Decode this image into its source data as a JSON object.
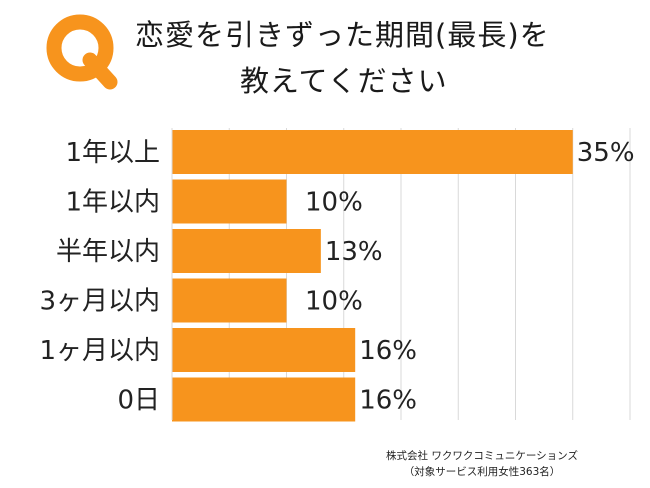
{
  "title": {
    "badge_letter": "Q",
    "line1": "恋愛を引きずった期間(最長)を",
    "line2": "教えてください"
  },
  "colors": {
    "accent": "#F7941D",
    "bar": "#F7941D",
    "grid": "#d9d9d9"
  },
  "chart_data": {
    "type": "bar",
    "orientation": "horizontal",
    "categories": [
      "1年以上",
      "1年以内",
      "半年以内",
      "3ヶ月以内",
      "1ヶ月以内",
      "0日"
    ],
    "values": [
      35,
      10,
      13,
      10,
      16,
      16
    ],
    "value_labels": [
      "35%",
      "10%",
      "13%",
      "10%",
      "16%",
      "16%"
    ],
    "unit": "%",
    "xlim": [
      0,
      40
    ],
    "grid": true
  },
  "credit": {
    "line1": "株式会社 ワクワクコミュニケーションズ",
    "line2": "（対象サービス利用女性363名）"
  }
}
